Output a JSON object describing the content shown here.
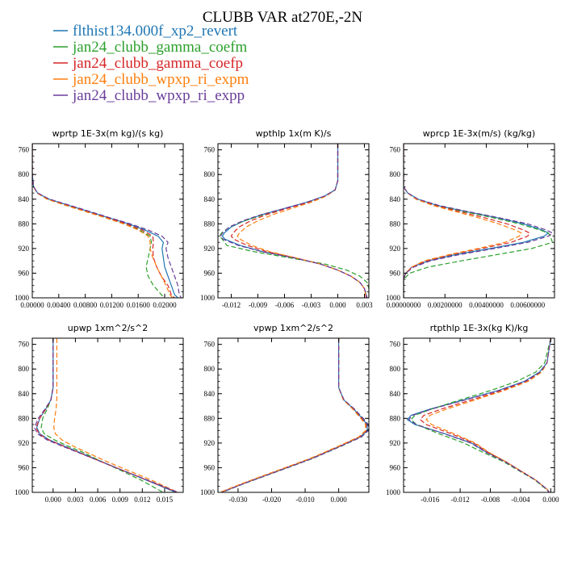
{
  "title": "CLUBB VAR at270E,-2N",
  "legend": [
    {
      "label": "flthist134.000f_xp2_revert",
      "color": "#1f77b4",
      "dash": ""
    },
    {
      "label": "jan24_clubb_gamma_coefm",
      "color": "#2ca02c",
      "dash": "6,3"
    },
    {
      "label": "jan24_clubb_gamma_coefp",
      "color": "#d62728",
      "dash": "6,3"
    },
    {
      "label": "jan24_clubb_wpxp_ri_expm",
      "color": "#ff7f0e",
      "dash": "6,3"
    },
    {
      "label": "jan24_clubb_wpxp_ri_expp",
      "color": "#6a3d9a",
      "dash": "6,3"
    }
  ],
  "chart_data": [
    {
      "type": "line",
      "title": "wprtp  1E-3x(m kg)/(s kg)",
      "ylim": [
        1000,
        750
      ],
      "yticks": [
        760,
        800,
        840,
        880,
        920,
        960,
        1000
      ],
      "xlim": [
        0.0,
        0.0228
      ],
      "xticks": [
        0.0,
        0.004,
        0.008,
        0.012,
        0.016,
        0.02
      ],
      "xticklabels": [
        "0.00000",
        "0.00400",
        "0.00800",
        "0.01200",
        "0.01600",
        "0.02000"
      ],
      "y": [
        750,
        800,
        820,
        830,
        840,
        850,
        860,
        870,
        880,
        890,
        900,
        910,
        920,
        935,
        950,
        965,
        980,
        995,
        1000
      ],
      "series": [
        {
          "values": [
            0.0,
            0.0,
            0.0002,
            0.0008,
            0.0025,
            0.0055,
            0.0085,
            0.0115,
            0.0145,
            0.017,
            0.019,
            0.0198,
            0.0196,
            0.0198,
            0.02,
            0.0205,
            0.021,
            0.0215,
            0.022
          ]
        },
        {
          "values": [
            0.0,
            0.0,
            0.0002,
            0.0008,
            0.0024,
            0.0053,
            0.0082,
            0.011,
            0.0138,
            0.0162,
            0.0178,
            0.018,
            0.0178,
            0.0175,
            0.0172,
            0.0175,
            0.0183,
            0.0195,
            0.02
          ]
        },
        {
          "values": [
            0.0,
            0.0,
            0.0002,
            0.0008,
            0.0025,
            0.0055,
            0.0084,
            0.0113,
            0.0142,
            0.0166,
            0.0182,
            0.0183,
            0.0182,
            0.0183,
            0.0188,
            0.0195,
            0.0205,
            0.021,
            0.0215
          ]
        },
        {
          "values": [
            0.0,
            0.0,
            0.0002,
            0.0007,
            0.0022,
            0.005,
            0.008,
            0.011,
            0.0138,
            0.016,
            0.0175,
            0.0178,
            0.0178,
            0.0182,
            0.0188,
            0.0195,
            0.0202,
            0.0208,
            0.0212
          ]
        },
        {
          "values": [
            0.0,
            0.0,
            0.0002,
            0.0008,
            0.0026,
            0.0057,
            0.0087,
            0.0117,
            0.0148,
            0.0175,
            0.0196,
            0.0205,
            0.0202,
            0.0205,
            0.021,
            0.0215,
            0.022,
            0.0222,
            0.0225
          ]
        }
      ]
    },
    {
      "type": "line",
      "title": "wpthlp  1x(m K)/s",
      "ylim": [
        1000,
        750
      ],
      "yticks": [
        760,
        800,
        840,
        880,
        920,
        960,
        1000
      ],
      "xlim": [
        -0.0135,
        0.0035
      ],
      "xticks": [
        -0.012,
        -0.009,
        -0.006,
        -0.003,
        0.0,
        0.003
      ],
      "xticklabels": [
        "-0.012",
        "-0.009",
        "-0.006",
        "-0.003",
        "0.000",
        "0.003"
      ],
      "y": [
        750,
        810,
        825,
        835,
        845,
        855,
        865,
        875,
        885,
        895,
        900,
        905,
        915,
        925,
        935,
        945,
        955,
        965,
        975,
        985,
        1000
      ],
      "series": [
        {
          "values": [
            0.0,
            0.0,
            -0.0003,
            -0.0015,
            -0.0035,
            -0.006,
            -0.0085,
            -0.0105,
            -0.012,
            -0.0128,
            -0.013,
            -0.0127,
            -0.011,
            -0.0085,
            -0.005,
            -0.002,
            0.0,
            0.0015,
            0.0025,
            0.003,
            0.0033
          ]
        },
        {
          "values": [
            0.0,
            0.0,
            -0.0003,
            -0.0014,
            -0.0033,
            -0.0058,
            -0.0083,
            -0.0105,
            -0.0122,
            -0.0131,
            -0.0133,
            -0.013,
            -0.0125,
            -0.0095,
            -0.0055,
            -0.0015,
            0.001,
            0.0025,
            0.0033,
            0.0035,
            0.0035
          ]
        },
        {
          "values": [
            0.0,
            0.0,
            -0.0003,
            -0.0014,
            -0.0033,
            -0.0057,
            -0.008,
            -0.0098,
            -0.0111,
            -0.0118,
            -0.012,
            -0.0117,
            -0.0102,
            -0.008,
            -0.0048,
            -0.002,
            0.0,
            0.0015,
            0.0025,
            0.003,
            0.0032
          ]
        },
        {
          "values": [
            0.0,
            0.0,
            -0.0003,
            -0.0013,
            -0.003,
            -0.0052,
            -0.0073,
            -0.009,
            -0.0103,
            -0.0111,
            -0.0113,
            -0.011,
            -0.0097,
            -0.0077,
            -0.0048,
            -0.002,
            0.0,
            0.0015,
            0.0025,
            0.003,
            0.0032
          ]
        },
        {
          "values": [
            0.0,
            0.0,
            -0.0003,
            -0.0015,
            -0.0035,
            -0.006,
            -0.0086,
            -0.0107,
            -0.0122,
            -0.013,
            -0.0132,
            -0.0129,
            -0.0112,
            -0.0086,
            -0.005,
            -0.002,
            0.0,
            0.0015,
            0.0025,
            0.003,
            0.0033
          ]
        }
      ]
    },
    {
      "type": "line",
      "title": "wprcp  1E-3x(m/s) (kg/kg)",
      "ylim": [
        1000,
        750
      ],
      "yticks": [
        760,
        800,
        840,
        880,
        920,
        960,
        1000
      ],
      "xlim": [
        0.0,
        0.0073
      ],
      "xticks": [
        0.0,
        0.002,
        0.004,
        0.006
      ],
      "xticklabels": [
        "0.00000000",
        "0.00200000",
        "0.00400000",
        "0.00600000"
      ],
      "y": [
        750,
        820,
        830,
        840,
        850,
        860,
        870,
        880,
        890,
        895,
        900,
        910,
        920,
        930,
        940,
        950,
        960,
        970,
        1000
      ],
      "series": [
        {
          "values": [
            0.0,
            0.0,
            0.0002,
            0.0007,
            0.0016,
            0.003,
            0.0045,
            0.0058,
            0.0067,
            0.007,
            0.0068,
            0.0058,
            0.0042,
            0.0025,
            0.0012,
            0.0004,
            0.0001,
            0.0,
            0.0
          ]
        },
        {
          "values": [
            0.0,
            0.0,
            0.0002,
            0.0007,
            0.0016,
            0.0029,
            0.0043,
            0.0056,
            0.0066,
            0.007,
            0.0071,
            0.0072,
            0.0062,
            0.0045,
            0.0028,
            0.0012,
            0.0003,
            0.0,
            0.0
          ]
        },
        {
          "values": [
            0.0,
            0.0,
            0.0002,
            0.0006,
            0.0015,
            0.0027,
            0.0039,
            0.005,
            0.0058,
            0.0061,
            0.006,
            0.0052,
            0.0038,
            0.0023,
            0.0011,
            0.0004,
            0.0001,
            0.0,
            0.0
          ]
        },
        {
          "values": [
            0.0,
            0.0,
            0.0002,
            0.0006,
            0.0014,
            0.0025,
            0.0036,
            0.0046,
            0.0054,
            0.0057,
            0.0056,
            0.0049,
            0.0036,
            0.0022,
            0.001,
            0.0004,
            0.0001,
            0.0,
            0.0
          ]
        },
        {
          "values": [
            0.0,
            0.0,
            0.0002,
            0.0007,
            0.0017,
            0.0031,
            0.0046,
            0.006,
            0.0069,
            0.0072,
            0.007,
            0.006,
            0.0044,
            0.0027,
            0.0013,
            0.0005,
            0.0001,
            0.0,
            0.0
          ]
        }
      ]
    },
    {
      "type": "line",
      "title": "upwp  1xm^2/s^2",
      "ylim": [
        1000,
        750
      ],
      "yticks": [
        760,
        800,
        840,
        880,
        920,
        960,
        1000
      ],
      "xlim": [
        -0.0028,
        0.0175
      ],
      "xticks": [
        0.0,
        0.003,
        0.006,
        0.009,
        0.012,
        0.015
      ],
      "xticklabels": [
        "0.000",
        "0.003",
        "0.006",
        "0.009",
        "0.012",
        "0.015"
      ],
      "y": [
        750,
        830,
        850,
        865,
        880,
        895,
        905,
        915,
        925,
        935,
        950,
        965,
        980,
        1000
      ],
      "series": [
        {
          "values": [
            0.0,
            0.0,
            -0.0003,
            -0.001,
            -0.0018,
            -0.0022,
            -0.0018,
            -0.0005,
            0.0015,
            0.0035,
            0.0065,
            0.0095,
            0.0125,
            0.0165
          ]
        },
        {
          "values": [
            0.0,
            0.0,
            -0.0003,
            -0.0008,
            -0.0014,
            -0.0016,
            -0.0012,
            0.0002,
            0.002,
            0.004,
            0.0065,
            0.0092,
            0.0118,
            0.0148
          ]
        },
        {
          "values": [
            0.0,
            0.0,
            -0.0003,
            -0.001,
            -0.0018,
            -0.0023,
            -0.0019,
            -0.0006,
            0.0014,
            0.0034,
            0.0064,
            0.0095,
            0.0126,
            0.0167
          ]
        },
        {
          "values": [
            0.0005,
            0.0005,
            0.0005,
            0.0004,
            0.0002,
            0.0001,
            0.0003,
            0.0012,
            0.0027,
            0.0045,
            0.0072,
            0.0102,
            0.0132,
            0.0168
          ]
        },
        {
          "values": [
            0.0,
            0.0,
            -0.0003,
            -0.0011,
            -0.002,
            -0.0025,
            -0.0021,
            -0.0008,
            0.0012,
            0.0033,
            0.0064,
            0.0095,
            0.0127,
            0.0168
          ]
        }
      ]
    },
    {
      "type": "line",
      "title": "vpwp  1xm^2/s^2",
      "ylim": [
        1000,
        750
      ],
      "yticks": [
        760,
        800,
        840,
        880,
        920,
        960,
        1000
      ],
      "xlim": [
        -0.036,
        0.009
      ],
      "xticks": [
        -0.03,
        -0.02,
        -0.01,
        0.0
      ],
      "xticklabels": [
        "-0.030",
        "-0.020",
        "-0.010",
        "0.000"
      ],
      "y": [
        750,
        830,
        850,
        865,
        880,
        890,
        900,
        910,
        925,
        945,
        965,
        985,
        1000
      ],
      "series": [
        {
          "values": [
            0.0,
            0.0,
            0.0015,
            0.0045,
            0.007,
            0.0085,
            0.0085,
            0.0065,
            0.0005,
            -0.008,
            -0.018,
            -0.028,
            -0.035
          ]
        },
        {
          "values": [
            0.0,
            0.0,
            0.0015,
            0.0047,
            0.0073,
            0.0088,
            0.0088,
            0.0068,
            0.0008,
            -0.0077,
            -0.0177,
            -0.0278,
            -0.0348
          ]
        },
        {
          "values": [
            0.0,
            0.0,
            0.0014,
            0.0043,
            0.0068,
            0.0082,
            0.0082,
            0.0062,
            0.0002,
            -0.0083,
            -0.0183,
            -0.0283,
            -0.0352
          ]
        },
        {
          "values": [
            0.0,
            0.0,
            0.0014,
            0.0042,
            0.0066,
            0.008,
            0.008,
            0.006,
            0.0,
            -0.0085,
            -0.0185,
            -0.0285,
            -0.0354
          ]
        },
        {
          "values": [
            0.0,
            0.0,
            0.0016,
            0.0047,
            0.0073,
            0.0088,
            0.0088,
            0.0068,
            0.0007,
            -0.0078,
            -0.0178,
            -0.0279,
            -0.0349
          ]
        }
      ]
    },
    {
      "type": "line",
      "title": "rtpthlp  1E-3x(kg K)/kg",
      "ylim": [
        1000,
        750
      ],
      "yticks": [
        760,
        800,
        840,
        880,
        920,
        960,
        1000
      ],
      "xlim": [
        -0.0195,
        0.0005
      ],
      "xticks": [
        -0.016,
        -0.012,
        -0.008,
        -0.004,
        0.0
      ],
      "xticklabels": [
        "-0.016",
        "-0.012",
        "-0.008",
        "-0.004",
        "0.000"
      ],
      "y": [
        750,
        790,
        805,
        820,
        835,
        850,
        865,
        875,
        882,
        890,
        905,
        920,
        935,
        950,
        965,
        980,
        995,
        1000
      ],
      "series": [
        {
          "values": [
            0.0,
            -0.0005,
            -0.0015,
            -0.0035,
            -0.007,
            -0.0115,
            -0.016,
            -0.0185,
            -0.019,
            -0.018,
            -0.014,
            -0.0105,
            -0.0085,
            -0.006,
            -0.004,
            -0.002,
            -0.0005,
            -0.0002
          ]
        },
        {
          "values": [
            0.0,
            -0.0008,
            -0.002,
            -0.0045,
            -0.008,
            -0.012,
            -0.0158,
            -0.018,
            -0.0185,
            -0.0178,
            -0.0148,
            -0.0115,
            -0.009,
            -0.0063,
            -0.0042,
            -0.0021,
            -0.0006,
            -0.0002
          ]
        },
        {
          "values": [
            0.0,
            -0.0005,
            -0.0013,
            -0.0032,
            -0.0065,
            -0.0105,
            -0.0145,
            -0.0168,
            -0.0173,
            -0.0165,
            -0.0132,
            -0.0102,
            -0.0083,
            -0.006,
            -0.004,
            -0.002,
            -0.0005,
            -0.0002
          ]
        },
        {
          "values": [
            0.0,
            -0.0005,
            -0.0012,
            -0.003,
            -0.0062,
            -0.01,
            -0.0138,
            -0.016,
            -0.0165,
            -0.0158,
            -0.0128,
            -0.01,
            -0.0082,
            -0.006,
            -0.004,
            -0.002,
            -0.0005,
            -0.0002
          ]
        },
        {
          "values": [
            0.0,
            -0.0005,
            -0.0014,
            -0.0034,
            -0.0069,
            -0.0113,
            -0.0158,
            -0.0183,
            -0.0188,
            -0.0178,
            -0.0141,
            -0.0106,
            -0.0086,
            -0.0061,
            -0.0041,
            -0.002,
            -0.0005,
            -0.0002
          ]
        }
      ]
    }
  ]
}
